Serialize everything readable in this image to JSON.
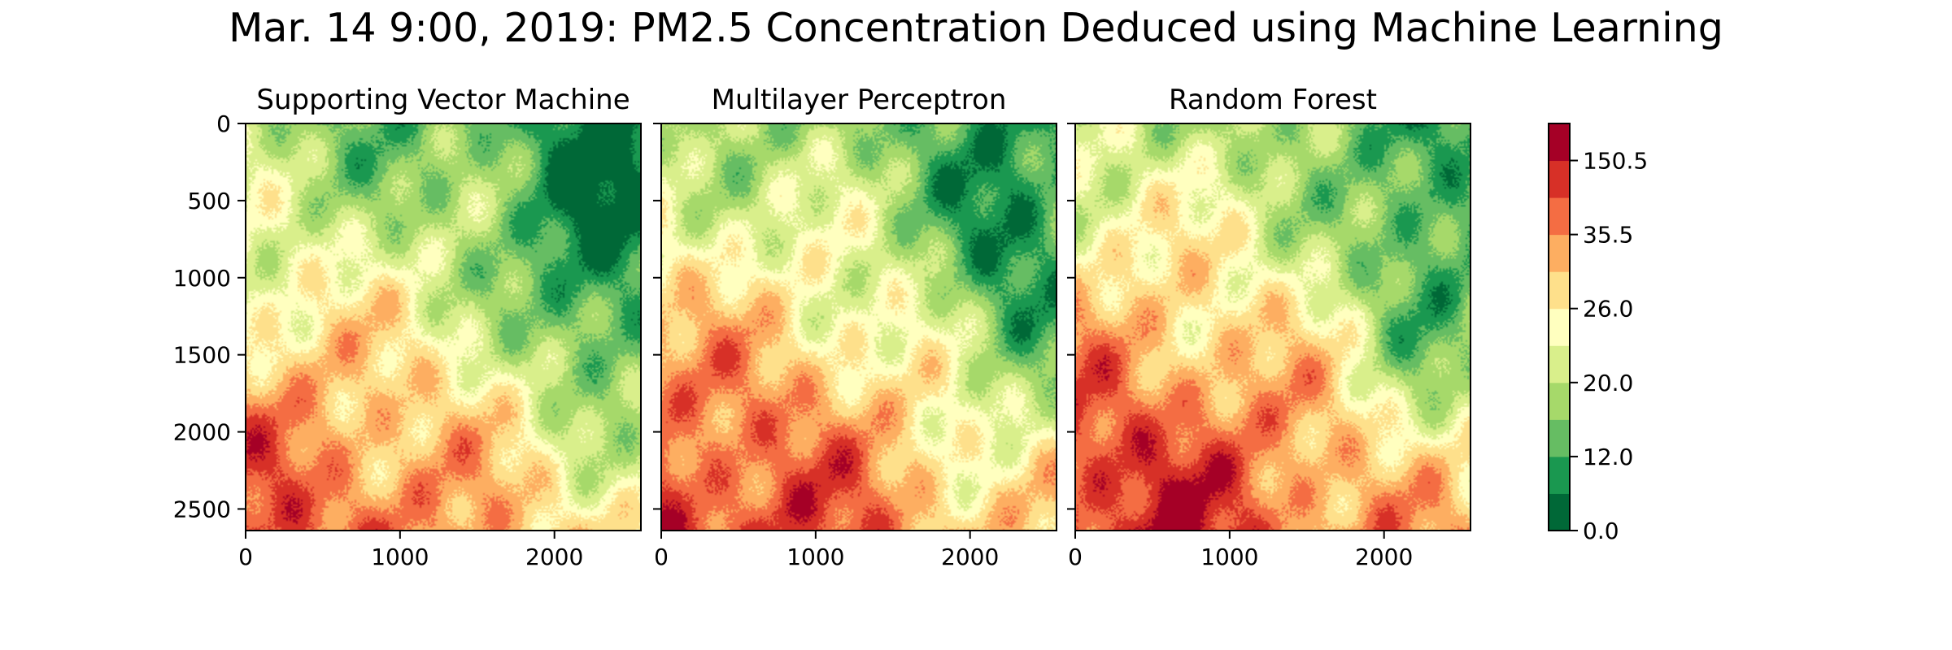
{
  "title": "Mar. 14 9:00, 2019: PM2.5 Concentration Deduced using Machine Learning",
  "chart_data": {
    "type": "heatmap",
    "title": "Mar. 14 9:00, 2019: PM2.5 Concentration Deduced using Machine Learning",
    "xlim": [
      0,
      2560
    ],
    "ylim": [
      2640,
      0
    ],
    "x_ticks": [
      "0",
      "1000",
      "2000"
    ],
    "x_tick_values": [
      0,
      1000,
      2000
    ],
    "y_ticks": [
      "0",
      "500",
      "1000",
      "1500",
      "2000",
      "2500"
    ],
    "y_tick_values": [
      0,
      500,
      1000,
      1500,
      2000,
      2500
    ],
    "panels": [
      {
        "title": "Supporting Vector Machine",
        "bias": 0.0
      },
      {
        "title": "Multilayer Perceptron",
        "bias": 0.15
      },
      {
        "title": "Random Forest",
        "bias": 0.25
      }
    ],
    "colorbar": {
      "ticks": [
        "0.0",
        "12.0",
        "20.0",
        "26.0",
        "35.5",
        "150.5"
      ],
      "tick_levels": [
        0,
        2,
        4,
        6,
        8,
        10
      ],
      "levels": 11,
      "colors": [
        "#006837",
        "#1a9850",
        "#66bd63",
        "#a6d96a",
        "#d9ef8b",
        "#ffffbf",
        "#fee08b",
        "#fdae61",
        "#f46d43",
        "#d73027",
        "#a50026"
      ]
    }
  }
}
